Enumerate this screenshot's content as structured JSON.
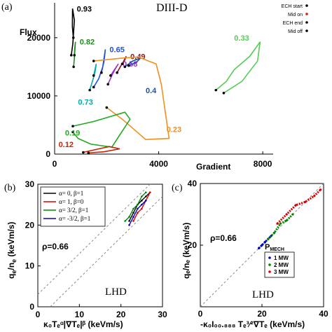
{
  "chart_data": [
    {
      "panel_label": "(a)",
      "type": "line",
      "title": "DIII-D",
      "xlabel": "Gradient",
      "ylabel": "Flux",
      "xlim": [
        0,
        8400
      ],
      "ylim": [
        0,
        26000
      ],
      "xticks": [
        0,
        4000,
        8000
      ],
      "yticks": [
        0,
        10000,
        20000
      ],
      "legend": {
        "placement": "top-right",
        "entries": [
          "ECH start",
          "Mid on",
          "ECH end",
          "Mid off"
        ],
        "marker_colors": [
          "#000000",
          "#cc2200",
          "#000000",
          "#000000"
        ]
      },
      "series": [
        {
          "label": "0.93",
          "color": "#000000",
          "x": [
            640,
            700,
            730,
            760,
            690,
            680,
            720
          ],
          "y": [
            17000,
            19000,
            21000,
            23000,
            25000,
            22000,
            20000
          ]
        },
        {
          "label": "0.82",
          "color": "#228B22",
          "x": [
            730,
            760,
            780,
            800,
            770,
            760
          ],
          "y": [
            15000,
            16500,
            18000,
            19300,
            18000,
            17000
          ]
        },
        {
          "label": "0.65",
          "color": "#1f4fe0",
          "x": [
            1500,
            1700,
            1850,
            1950,
            1900,
            1800
          ],
          "y": [
            11500,
            13000,
            15000,
            18000,
            16000,
            14000
          ]
        },
        {
          "label": "0.58",
          "color": "#9b30d0",
          "x": [
            2050,
            2200,
            2350,
            2450,
            2300,
            2150
          ],
          "y": [
            12000,
            13500,
            14800,
            15500,
            14500,
            13500
          ]
        },
        {
          "label": "0.49",
          "color": "#8b1a1a",
          "x": [
            2400,
            2550,
            2700,
            2750,
            2600
          ],
          "y": [
            14000,
            15200,
            16200,
            16800,
            15500
          ]
        },
        {
          "label": "0.4",
          "color": "#1f4fa0",
          "x": [
            2700,
            3000,
            3300,
            3150,
            2850
          ],
          "y": [
            15000,
            16000,
            16500,
            15800,
            15200
          ]
        },
        {
          "label": "0.73",
          "color": "#00aaaa",
          "x": [
            1350,
            1450,
            1550,
            1600,
            1500
          ],
          "y": [
            11000,
            12500,
            14000,
            15500,
            13500
          ]
        },
        {
          "label": "0.33",
          "color": "#55cc55",
          "x": [
            6200,
            6600,
            6900,
            7500,
            7900,
            7800,
            7200,
            6500
          ],
          "y": [
            11000,
            12500,
            14500,
            16800,
            19300,
            16000,
            12500,
            10500
          ]
        },
        {
          "label": "0.23",
          "color": "#f09020",
          "x": [
            1500,
            2600,
            3200,
            3900,
            4100,
            4400,
            3500,
            2600,
            2000
          ],
          "y": [
            16000,
            16500,
            16700,
            15500,
            12000,
            2700,
            2500,
            6000,
            8000
          ]
        },
        {
          "label": "0.19",
          "color": "#22aa22",
          "x": [
            700,
            1500,
            2700,
            2900,
            2200,
            1400,
            900,
            700
          ],
          "y": [
            4800,
            5600,
            7200,
            6000,
            1200,
            1700,
            2700,
            3800
          ]
        },
        {
          "label": "0.12",
          "color": "#cc2200",
          "x": [
            1100,
            1600,
            2100,
            2500,
            1900,
            1300
          ],
          "y": [
            300,
            800,
            1300,
            900,
            400,
            200
          ]
        }
      ]
    },
    {
      "panel_label": "(b)",
      "type": "scatter",
      "annotation": "LHD",
      "rho": "ρ=0.66",
      "xlabel": "κ₀Tₑᵅ|∇Tₑ|ᵝ (keVm/s)",
      "xlim": [
        0,
        30
      ],
      "ylim": [
        0,
        30
      ],
      "xticks": [
        0,
        10,
        20,
        30
      ],
      "yticks": [
        0,
        10,
        20,
        30
      ],
      "legend": [
        {
          "name": "α= 0,   β=1",
          "color": "#000000"
        },
        {
          "name": "α= 1,   β=0",
          "color": "#dd0000"
        },
        {
          "name": "α= 3/2, β=1",
          "color": "#008800"
        },
        {
          "name": "α= -3/2, β=1",
          "color": "#0000cc"
        }
      ],
      "series": [
        {
          "name": "α=0, β=1",
          "color": "#000000",
          "x": [
            22,
            23,
            24,
            25,
            26,
            27
          ],
          "y": [
            21,
            23,
            25,
            26,
            27,
            28
          ]
        },
        {
          "name": "α=1, β=0",
          "color": "#dd0000",
          "x": [
            23,
            24,
            25,
            26,
            27
          ],
          "y": [
            21,
            23,
            24,
            26,
            28
          ]
        },
        {
          "name": "α=3/2, β=1",
          "color": "#008800",
          "x": [
            21,
            22,
            23,
            24,
            25,
            26
          ],
          "y": [
            21,
            22,
            24,
            25,
            27,
            28
          ]
        },
        {
          "name": "α=-3/2, β=1",
          "color": "#0000cc",
          "x": [
            22,
            23,
            24,
            25,
            26
          ],
          "y": [
            20,
            22,
            24,
            25,
            26
          ]
        }
      ]
    },
    {
      "panel_label": "(c)",
      "type": "scatter",
      "annotation": "LHD",
      "rho": "ρ=0.66",
      "ylabel": "qₑ/nₑ (keVm/s)",
      "xlabel": "-κ₀I₀₀.₈₈₈ Tₑ³⁄²∇Tₑ (keVm/s)",
      "xlim": [
        0,
        40
      ],
      "ylim": [
        0,
        40
      ],
      "xticks": [
        0,
        20,
        40
      ],
      "yticks": [
        20,
        40
      ],
      "legend_title": "P",
      "legend_title_sub": "MECH",
      "legend": [
        {
          "name": "1 MW",
          "color": "#0000cc"
        },
        {
          "name": "2 MW",
          "color": "#008800"
        },
        {
          "name": "3 MW",
          "color": "#dd0000"
        }
      ],
      "series": [
        {
          "name": "1 MW",
          "color": "#0000cc",
          "x": [
            19,
            20,
            21,
            22,
            23
          ],
          "y": [
            19,
            20,
            21,
            22,
            23
          ]
        },
        {
          "name": "2 MW",
          "color": "#008800",
          "x": [
            22,
            24,
            26,
            28,
            30
          ],
          "y": [
            22,
            24,
            27,
            28,
            30
          ]
        },
        {
          "name": "3 MW",
          "color": "#dd0000",
          "x": [
            25,
            28,
            31,
            34,
            37,
            39
          ],
          "y": [
            27,
            30,
            33,
            34,
            36,
            38
          ]
        }
      ]
    }
  ]
}
